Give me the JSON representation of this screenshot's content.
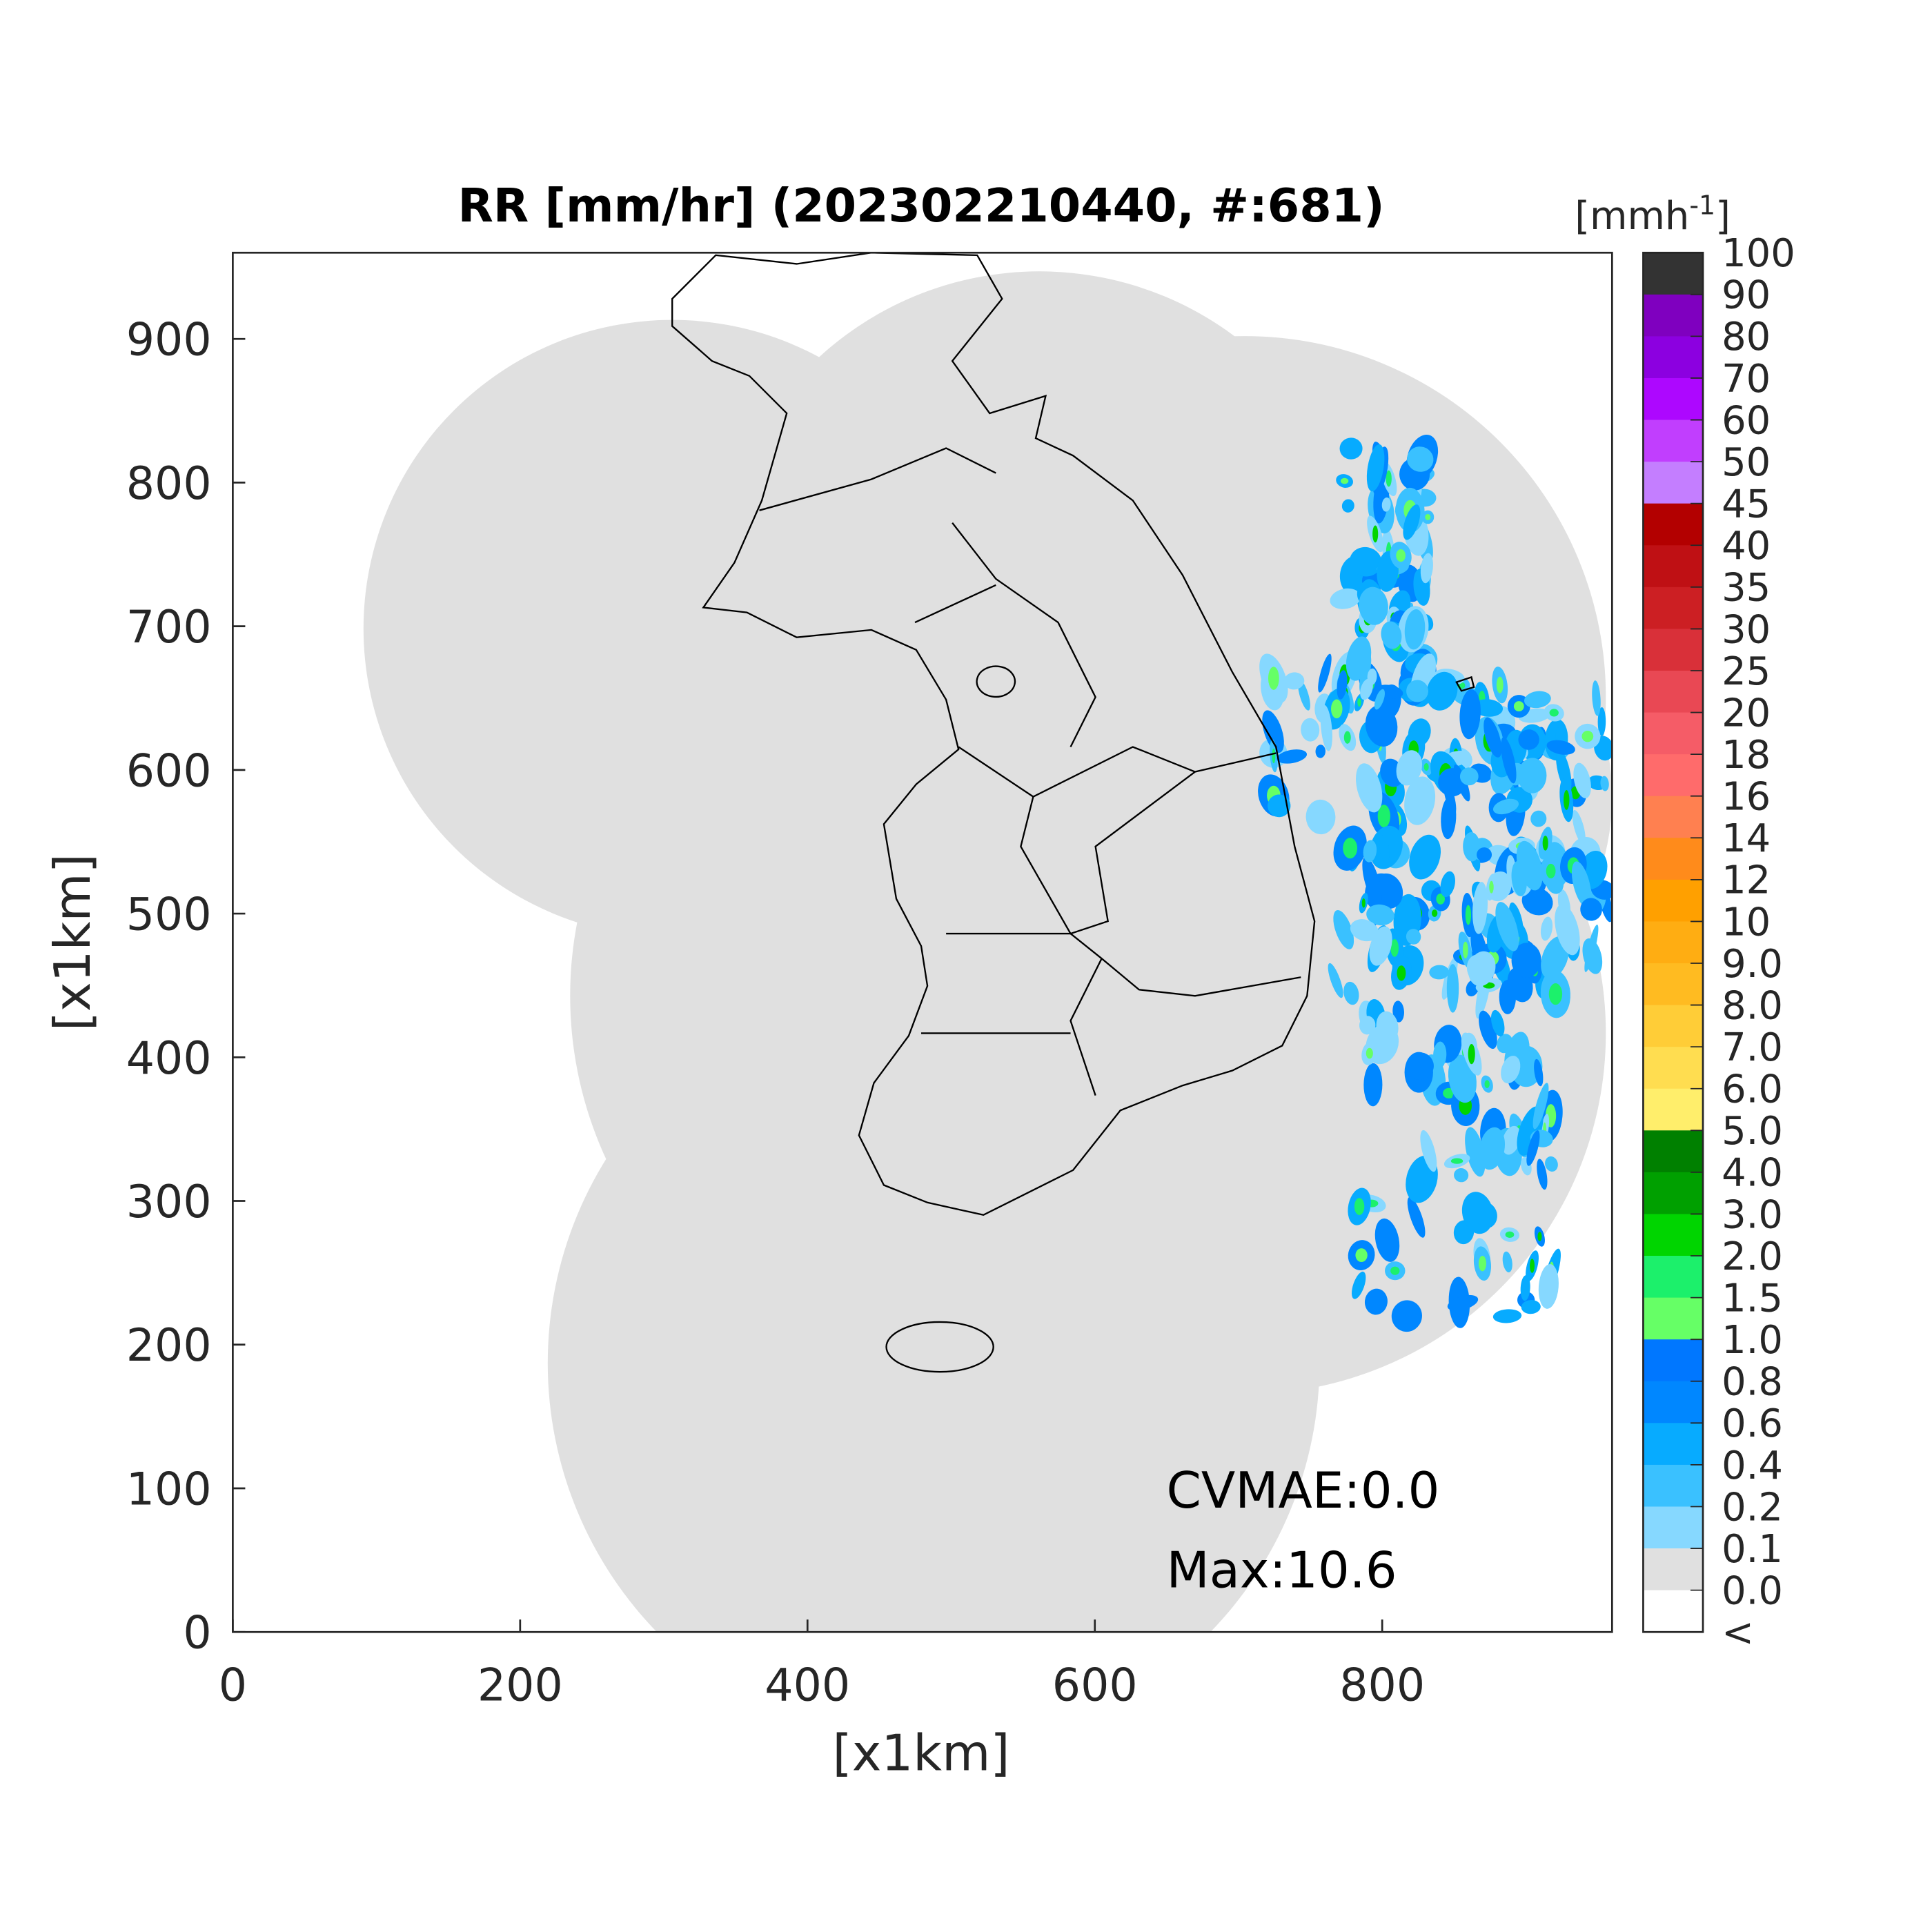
{
  "chart_data": {
    "type": "heatmap",
    "title": "RR [mm/hr] (202302210440, #:681)",
    "xlabel": "[x1km]",
    "ylabel": "[x1km]",
    "xlim": [
      0,
      960
    ],
    "ylim": [
      0,
      960
    ],
    "xticks": [
      "0",
      "200",
      "400",
      "600",
      "800"
    ],
    "yticks": [
      "0",
      "100",
      "200",
      "300",
      "400",
      "500",
      "600",
      "700",
      "800",
      "900"
    ],
    "grid": false,
    "colorbar": {
      "unit_label": "[mmh",
      "unit_exponent": "-1",
      "unit_close": "]",
      "labels": [
        "100",
        "90",
        "80",
        "70",
        "60",
        "50",
        "45",
        "40",
        "35",
        "30",
        "25",
        "20",
        "18",
        "16",
        "14",
        "12",
        "10",
        "9.0",
        "8.0",
        "7.0",
        "6.0",
        "5.0",
        "4.0",
        "3.0",
        "2.0",
        "1.5",
        "1.0",
        "0.8",
        "0.6",
        "0.4",
        "0.2",
        "0.1",
        "0.0",
        "<"
      ],
      "colors": [
        "#333333",
        "#7f00bf",
        "#8c00e0",
        "#ad07ff",
        "#c13efe",
        "#c47eff",
        "#b30000",
        "#bf1014",
        "#cc1f23",
        "#d93039",
        "#e94854",
        "#f55c67",
        "#ff6b6b",
        "#ff8050",
        "#ff8b1b",
        "#ffa000",
        "#ffad12",
        "#ffbb21",
        "#ffcd37",
        "#ffdd50",
        "#ffee6b",
        "#008000",
        "#00a000",
        "#00d500",
        "#1cf06b",
        "#66ff66",
        "#0077ff",
        "#0087ff",
        "#07abff",
        "#3ac1ff",
        "#86d8ff",
        "#e0e0e0",
        "#ffffff"
      ]
    },
    "annotations": {
      "cvmae": "CVMAE:0.0",
      "max": "Max:10.6"
    },
    "coverage_color": "#e0e0e0"
  }
}
